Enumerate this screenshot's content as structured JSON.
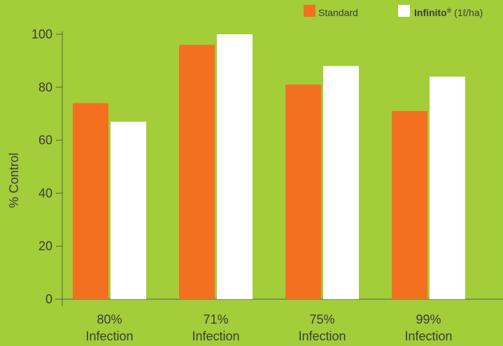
{
  "colors": {
    "background": "#a3cd39",
    "standard": "#f37021",
    "infinito": "#ffffff",
    "axis": "#5a5a5a",
    "text": "#3d3d3d"
  },
  "legend": {
    "standard_label": "Standard",
    "infinito_brand": "Infinito",
    "infinito_reg": "®",
    "infinito_rate": " (1ℓ/ha)"
  },
  "chart_data": {
    "type": "bar",
    "ylabel": "% Control",
    "xlabel": "",
    "ylim": [
      0,
      100
    ],
    "yticks": [
      0,
      20,
      40,
      60,
      80,
      100
    ],
    "categories": [
      [
        "80%",
        "Infection"
      ],
      [
        "71%",
        "Infection"
      ],
      [
        "75%",
        "Infection"
      ],
      [
        "99%",
        "Infection"
      ]
    ],
    "series": [
      {
        "name": "Standard",
        "color": "#f37021",
        "values": [
          74,
          96,
          81,
          71
        ]
      },
      {
        "name": "Infinito® (1ℓ/ha)",
        "color": "#ffffff",
        "values": [
          67,
          100,
          88,
          84
        ]
      }
    ],
    "legend_position": "top-right",
    "grid": false
  }
}
